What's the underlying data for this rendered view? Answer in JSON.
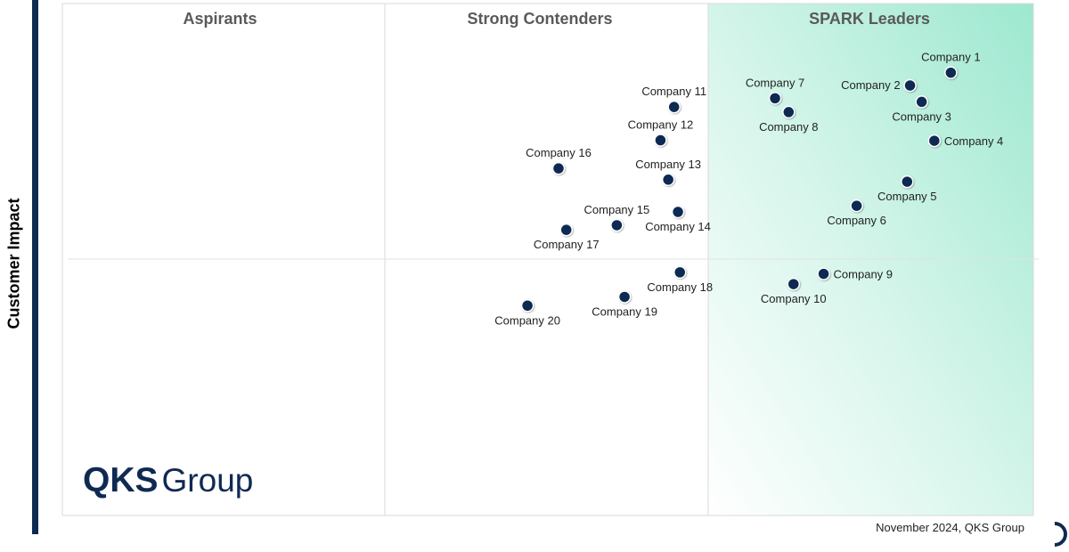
{
  "chart_data": {
    "type": "scatter",
    "title": "",
    "ylabel": "Customer Impact",
    "xlabel": "",
    "xlim": [
      0,
      100
    ],
    "ylim": [
      0,
      100
    ],
    "quadrants": [
      "Aspirants",
      "Strong Contenders",
      "SPARK Leaders"
    ],
    "points": [
      {
        "label": "Company 1",
        "x": 91.5,
        "y": 86.5,
        "label_pos": "above"
      },
      {
        "label": "Company 2",
        "x": 87.3,
        "y": 84.0,
        "label_pos": "left"
      },
      {
        "label": "Company 3",
        "x": 88.5,
        "y": 80.8,
        "label_pos": "below"
      },
      {
        "label": "Company 4",
        "x": 89.8,
        "y": 73.2,
        "label_pos": "right"
      },
      {
        "label": "Company 5",
        "x": 87.0,
        "y": 65.2,
        "label_pos": "below"
      },
      {
        "label": "Company 6",
        "x": 81.8,
        "y": 60.5,
        "label_pos": "below"
      },
      {
        "label": "Company 7",
        "x": 73.4,
        "y": 81.5,
        "label_pos": "above"
      },
      {
        "label": "Company 8",
        "x": 74.8,
        "y": 78.8,
        "label_pos": "below"
      },
      {
        "label": "Company 9",
        "x": 78.4,
        "y": 47.2,
        "label_pos": "right"
      },
      {
        "label": "Company 10",
        "x": 75.3,
        "y": 45.2,
        "label_pos": "below"
      },
      {
        "label": "Company 11",
        "x": 63.0,
        "y": 79.8,
        "label_pos": "above"
      },
      {
        "label": "Company 12",
        "x": 61.6,
        "y": 73.3,
        "label_pos": "above"
      },
      {
        "label": "Company 13",
        "x": 62.4,
        "y": 65.6,
        "label_pos": "above"
      },
      {
        "label": "Company 14",
        "x": 63.4,
        "y": 59.3,
        "label_pos": "below"
      },
      {
        "label": "Company 15",
        "x": 57.1,
        "y": 56.7,
        "label_pos": "above"
      },
      {
        "label": "Company 16",
        "x": 51.1,
        "y": 67.8,
        "label_pos": "above"
      },
      {
        "label": "Company 17",
        "x": 51.9,
        "y": 55.8,
        "label_pos": "below"
      },
      {
        "label": "Company 18",
        "x": 63.6,
        "y": 47.5,
        "label_pos": "below"
      },
      {
        "label": "Company 19",
        "x": 57.9,
        "y": 42.7,
        "label_pos": "below"
      },
      {
        "label": "Company 20",
        "x": 47.9,
        "y": 41.0,
        "label_pos": "below"
      }
    ]
  },
  "logo": {
    "qks": "QKS",
    "group": "Group"
  },
  "footer": "November 2024, QKS Group",
  "colors": {
    "accent": "#0f2a52",
    "leaders_gradient": "#9de8d0",
    "dot": "#0f2a52"
  }
}
